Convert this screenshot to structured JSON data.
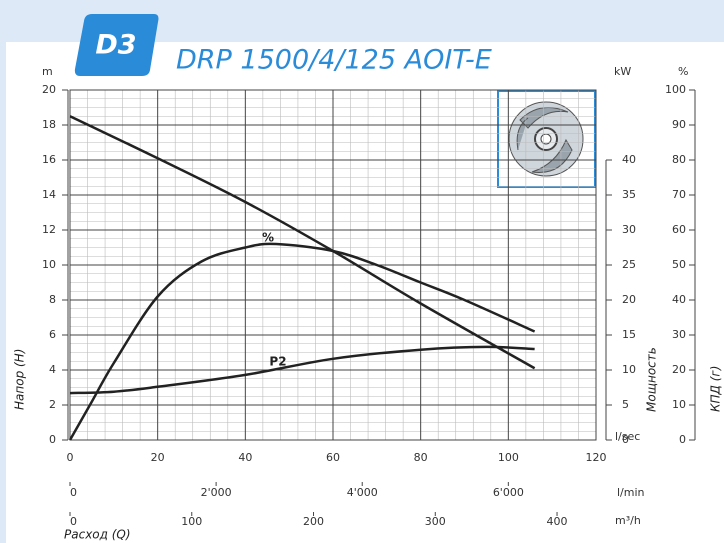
{
  "chart_data": {
    "type": "line",
    "badge": "D3",
    "title": "DRP 1500/4/125 AOIT-E",
    "y_unit": "m",
    "y3_unit": "kW",
    "y2_unit": "%",
    "ylabel": "Напор (H)",
    "y3label": "Мощность",
    "y2label": "КПД (г)",
    "xlabel": "Расход (Q)",
    "x_unit": "l/sec",
    "xlim": [
      0,
      120
    ],
    "xticks": [
      0,
      20,
      40,
      60,
      80,
      100,
      120
    ],
    "x_lmin_unit": "l/min",
    "x_lmin_ticks": [
      0,
      {
        "value": 2000,
        "label": "2'000"
      },
      {
        "value": 4000,
        "label": "4'000"
      },
      {
        "value": 6000,
        "label": "6'000"
      }
    ],
    "x_m3h_unit": "m³/h",
    "x_m3h_ticks": [
      0,
      100,
      200,
      300,
      400
    ],
    "ylim": [
      0,
      20
    ],
    "yticks": [
      0,
      2,
      4,
      6,
      8,
      10,
      12,
      14,
      16,
      18,
      20
    ],
    "y2lim": [
      0,
      100
    ],
    "y2ticks": [
      0,
      10,
      20,
      30,
      40,
      50,
      60,
      70,
      80,
      90,
      100
    ],
    "y3lim": [
      0,
      40
    ],
    "y3ticks": [
      0,
      5,
      10,
      15,
      20,
      25,
      30,
      35,
      40
    ],
    "grid": true,
    "series": [
      {
        "name": "H",
        "color": "#222222",
        "x": [
          0,
          20,
          40,
          60,
          80,
          106
        ],
        "values": [
          18.5,
          16.1,
          13.6,
          10.8,
          7.8,
          4.1
        ]
      },
      {
        "name": "%",
        "color": "#222222",
        "axis": "y2",
        "x": [
          0,
          5,
          10,
          20,
          30,
          40,
          47,
          60,
          70,
          80,
          90,
          106
        ],
        "values": [
          0,
          11,
          22,
          41,
          51,
          55,
          56,
          54,
          50,
          45,
          40,
          31
        ]
      },
      {
        "name": "P2",
        "color": "#222222",
        "axis": "y3",
        "x": [
          0,
          10,
          20,
          40,
          60,
          80,
          95,
          106
        ],
        "values": [
          6.7,
          6.9,
          7.6,
          9.3,
          11.6,
          12.9,
          13.3,
          13.0
        ]
      }
    ]
  }
}
